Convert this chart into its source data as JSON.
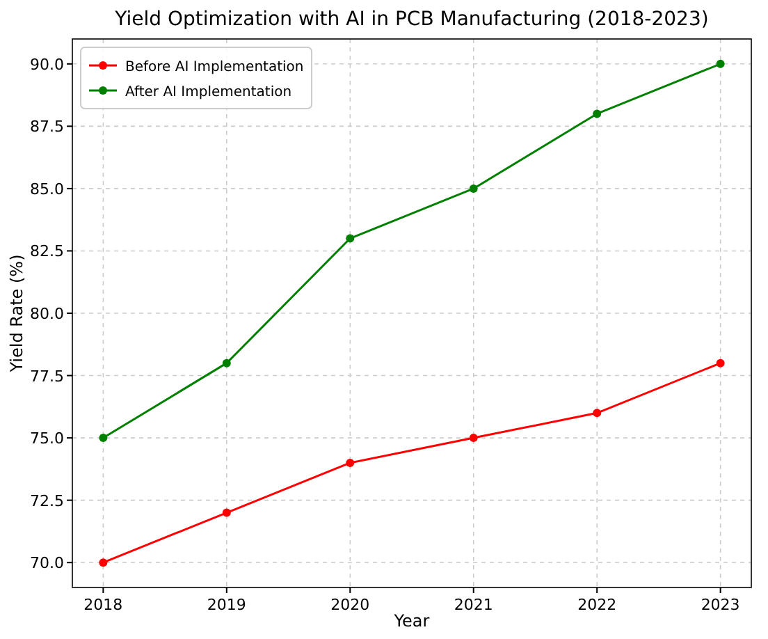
{
  "chart_data": {
    "type": "line",
    "title": "Yield Optimization with AI in PCB Manufacturing (2018-2023)",
    "xlabel": "Year",
    "ylabel": "Yield Rate (%)",
    "x": [
      2018,
      2019,
      2020,
      2021,
      2022,
      2023
    ],
    "series": [
      {
        "name": "Before AI Implementation",
        "color": "#ff0000",
        "values": [
          70,
          72,
          74,
          75,
          76,
          78
        ]
      },
      {
        "name": "After AI Implementation",
        "color": "#008000",
        "values": [
          75,
          78,
          83,
          85,
          88,
          90
        ]
      }
    ],
    "xlim": [
      2017.75,
      2023.25
    ],
    "xticks": [
      2018,
      2019,
      2020,
      2021,
      2022,
      2023
    ],
    "ylim": [
      69,
      91
    ],
    "yticks": [
      {
        "value": 70,
        "label": "70.0"
      },
      {
        "value": 72.5,
        "label": "72.5"
      },
      {
        "value": 75,
        "label": "75.0"
      },
      {
        "value": 77.5,
        "label": "77.5"
      },
      {
        "value": 80,
        "label": "80.0"
      },
      {
        "value": 82.5,
        "label": "82.5"
      },
      {
        "value": 85,
        "label": "85.0"
      },
      {
        "value": 87.5,
        "label": "87.5"
      },
      {
        "value": 90,
        "label": "90.0"
      }
    ],
    "grid": true,
    "legend": "top left",
    "marker": "circle",
    "line_style": "solid"
  }
}
